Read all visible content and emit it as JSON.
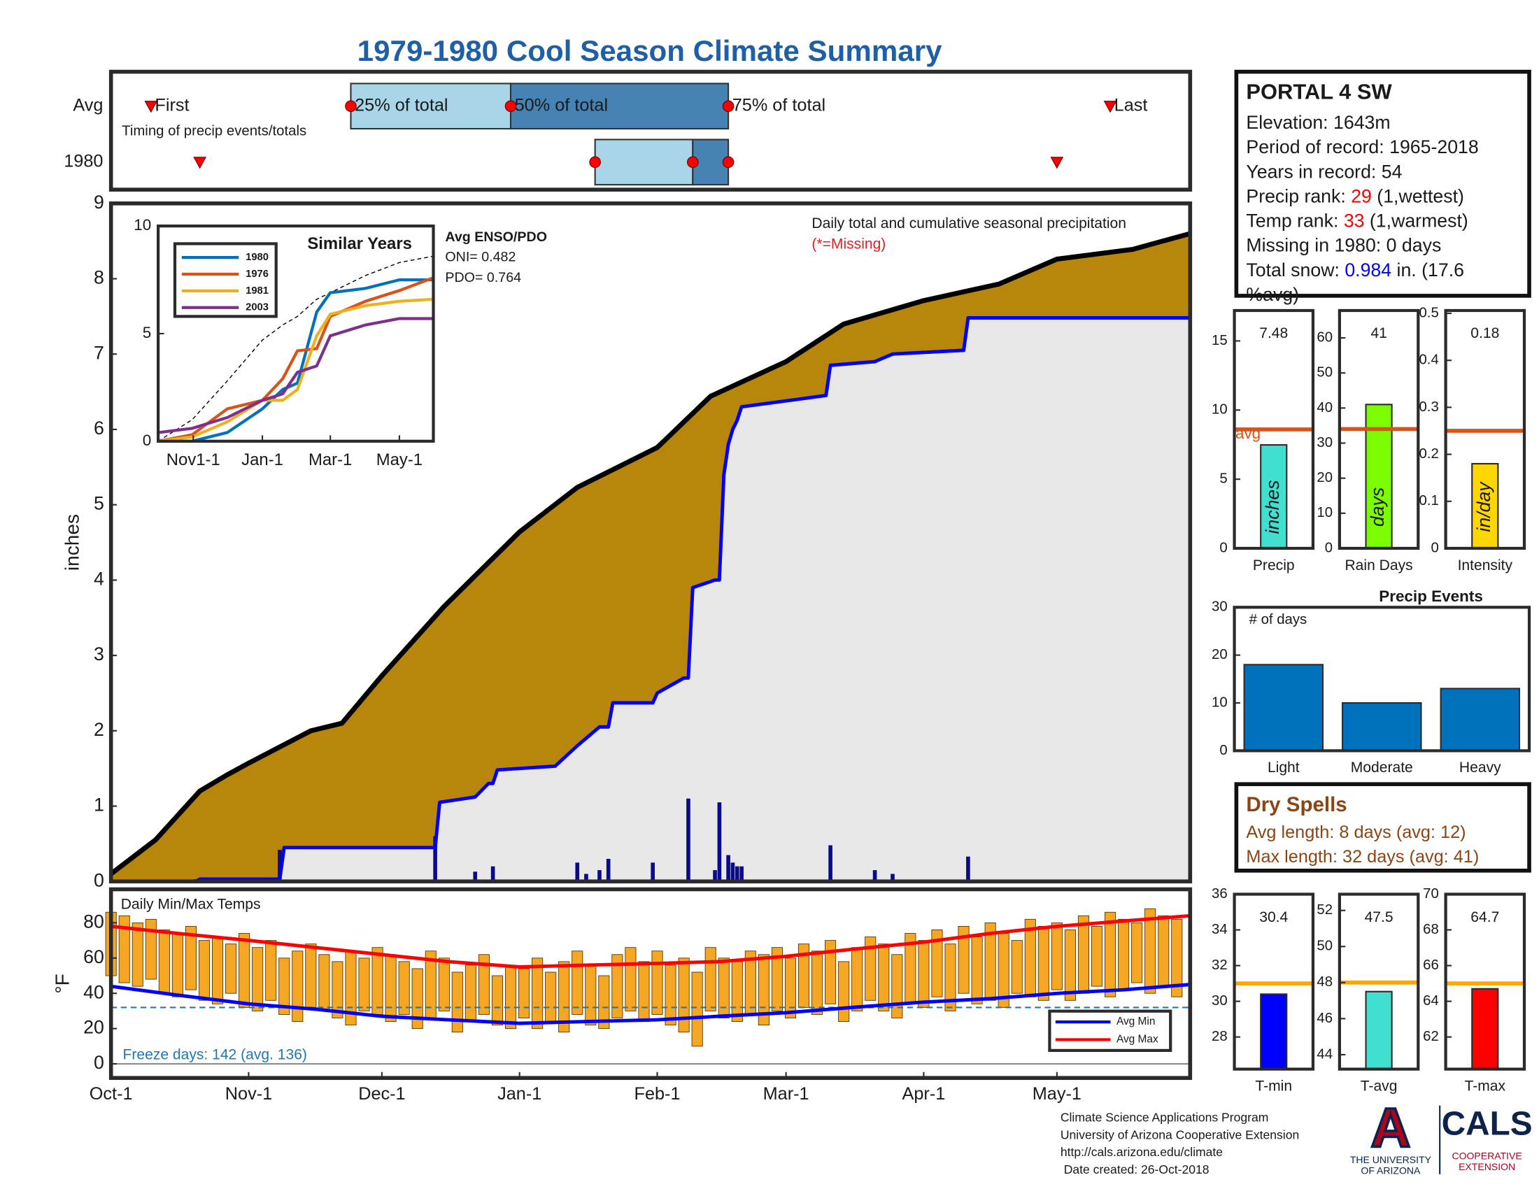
{
  "title": "1979-1980 Cool Season Climate Summary",
  "station": {
    "name": "PORTAL 4 SW",
    "lines": [
      [
        {
          "text": "Elevation: 1643m"
        }
      ],
      [
        {
          "text": "Period of record: 1965-2018"
        }
      ],
      [
        {
          "text": "Years in record: 54"
        }
      ],
      [
        {
          "text": "Precip rank: "
        },
        {
          "text": "29",
          "color": "#ff0000"
        },
        {
          "text": " (1,wettest)"
        }
      ],
      [
        {
          "text": "Temp rank: "
        },
        {
          "text": "33",
          "color": "#ff0000"
        },
        {
          "text": " (1,warmest)"
        }
      ],
      [
        {
          "text": "Missing in 1980: 0 days"
        }
      ],
      [
        {
          "text": "Total snow: "
        },
        {
          "text": "0.984",
          "color": "#0000ff"
        },
        {
          "text": " in. (17.6"
        }
      ],
      [
        {
          "text": "%avg)"
        }
      ]
    ]
  },
  "dry_spells": {
    "title": "Dry Spells",
    "lines": [
      "Avg length: 8 days (avg: 12)",
      "Max length: 32 days (avg: 41)"
    ],
    "color": "#8b4513"
  },
  "footer": [
    "Climate Science Applications Program",
    "University of Arizona Cooperative Extension",
    "http://cals.arizona.edu/climate",
    " Date created: 26-Oct-2018"
  ],
  "logo": {
    "letter": "A",
    "university": [
      "THE UNIVERSITY",
      "OF ARIZONA"
    ],
    "cals": "CALS",
    "extension": [
      "COOPERATIVE",
      "EXTENSION"
    ]
  },
  "chart_data": [
    {
      "type": "timing",
      "annotation": "Timing of precip events/totals",
      "xlim": [
        0,
        243
      ],
      "marker_labels": [
        "First",
        "25% of total",
        "50% of total",
        "75% of total",
        "Last"
      ],
      "box_colors": [
        "#a8d5e8",
        "#4682b4"
      ],
      "marker_color": "#ff0000",
      "series": [
        {
          "name": "Avg",
          "values": [
            9,
            54,
            90,
            139,
            225
          ]
        },
        {
          "name": "1980",
          "values": [
            20,
            109,
            131,
            139,
            213
          ]
        }
      ]
    },
    {
      "type": "area",
      "ylabel": "inches",
      "annotation": "Daily total and cumulative seasonal precipitation",
      "missing_note": "(*=Missing)",
      "xlim": [
        0,
        243
      ],
      "ylim": [
        0,
        9
      ],
      "yticks": [
        0,
        1,
        2,
        3,
        4,
        5,
        6,
        7,
        8,
        9
      ],
      "average_cumulative": {
        "color": "#000000",
        "fill": "#b8860b",
        "x": [
          0,
          10,
          20,
          26,
          31,
          45,
          52,
          61,
          75,
          92,
          105,
          123,
          135,
          152,
          165,
          183,
          200,
          213,
          230,
          243
        ],
        "values": [
          0.1,
          0.55,
          1.2,
          1.41,
          1.57,
          2.0,
          2.1,
          2.73,
          3.65,
          4.64,
          5.23,
          5.76,
          6.44,
          6.9,
          7.4,
          7.71,
          7.93,
          8.26,
          8.39,
          8.6
        ]
      },
      "cumulative": {
        "color": "#0000ff",
        "fill": "#e8e8e8",
        "x": [
          0,
          19,
          20,
          38,
          39,
          73,
          74,
          82,
          85,
          86,
          87,
          100,
          105,
          110,
          112,
          113,
          122,
          123,
          129,
          130,
          131,
          136,
          137,
          138,
          139,
          140,
          141,
          142,
          161,
          162,
          172,
          176,
          192,
          193,
          243
        ],
        "values": [
          0,
          0,
          0.03,
          0.03,
          0.45,
          0.45,
          1.05,
          1.12,
          1.3,
          1.3,
          1.48,
          1.53,
          1.8,
          2.05,
          2.05,
          2.37,
          2.37,
          2.5,
          2.7,
          2.7,
          3.9,
          4.0,
          4.0,
          5.4,
          5.8,
          6.0,
          6.12,
          6.3,
          6.45,
          6.85,
          6.9,
          7.0,
          7.05,
          7.48,
          7.48
        ]
      },
      "daily": {
        "color": "#0a0a8c",
        "x": [
          19,
          38,
          73,
          82,
          86,
          105,
          107,
          110,
          112,
          122,
          130,
          136,
          137,
          139,
          140,
          141,
          142,
          162,
          172,
          176,
          193
        ],
        "values": [
          0.03,
          0.42,
          0.6,
          0.13,
          0.2,
          0.25,
          0.1,
          0.15,
          0.3,
          0.25,
          1.1,
          0.15,
          1.05,
          0.35,
          0.25,
          0.2,
          0.2,
          0.48,
          0.15,
          0.1,
          0.33
        ]
      }
    },
    {
      "type": "line",
      "title": "Similar Years",
      "xlim": [
        0,
        243
      ],
      "ylim": [
        0,
        10
      ],
      "yticks": [
        0,
        5,
        10
      ],
      "xticks": [
        {
          "value": 31,
          "label": "Nov1-1"
        },
        {
          "value": 92,
          "label": "Jan-1"
        },
        {
          "value": 152,
          "label": "Mar-1"
        },
        {
          "value": 213,
          "label": "May-1"
        }
      ],
      "x": [
        0,
        30,
        61,
        92,
        110,
        123,
        140,
        152,
        183,
        213,
        243
      ],
      "series": [
        {
          "name": "1980",
          "color": "#0072bd",
          "values": [
            0,
            0,
            0.4,
            1.5,
            2.4,
            2.7,
            6.0,
            6.9,
            7.1,
            7.5,
            7.5
          ]
        },
        {
          "name": "1976",
          "color": "#d95319",
          "values": [
            0,
            0.3,
            1.5,
            1.9,
            2.9,
            4.2,
            4.3,
            5.8,
            6.5,
            7.0,
            7.6
          ]
        },
        {
          "name": "1981",
          "color": "#edb120",
          "values": [
            0,
            0.2,
            0.9,
            1.9,
            1.9,
            2.4,
            4.9,
            5.9,
            6.3,
            6.5,
            6.6
          ]
        },
        {
          "name": "2003",
          "color": "#7e2f8e",
          "values": [
            0.4,
            0.6,
            1.1,
            1.9,
            2.2,
            3.2,
            3.5,
            4.9,
            5.4,
            5.7,
            5.7
          ]
        }
      ],
      "average": {
        "color": "#000000",
        "values": [
          0,
          1.0,
          2.8,
          4.7,
          5.4,
          5.8,
          6.6,
          6.9,
          7.7,
          8.3,
          8.6
        ]
      },
      "enso": {
        "title": "Avg ENSO/PDO",
        "lines": [
          "ONI= 0.482",
          "PDO= 0.764"
        ]
      }
    },
    {
      "type": "range_bar",
      "title": "Daily Min/Max Temps",
      "ylabel": "°F",
      "xlim": [
        0,
        243
      ],
      "ylim": [
        -8,
        99
      ],
      "yticks": [
        0,
        20,
        40,
        60,
        80
      ],
      "xticks": [
        {
          "value": 0,
          "label": "Oct-1"
        },
        {
          "value": 31,
          "label": "Nov-1"
        },
        {
          "value": 61,
          "label": "Dec-1"
        },
        {
          "value": 92,
          "label": "Jan-1"
        },
        {
          "value": 123,
          "label": "Feb-1"
        },
        {
          "value": 152,
          "label": "Mar-1"
        },
        {
          "value": 183,
          "label": "Apr-1"
        },
        {
          "value": 213,
          "label": "May-1"
        }
      ],
      "bar_color": "#f5a623",
      "x": [
        0,
        3,
        6,
        9,
        12,
        15,
        18,
        21,
        24,
        27,
        30,
        33,
        36,
        39,
        42,
        45,
        48,
        51,
        54,
        57,
        60,
        63,
        66,
        69,
        72,
        75,
        78,
        81,
        84,
        87,
        90,
        93,
        96,
        99,
        102,
        105,
        108,
        111,
        114,
        117,
        120,
        123,
        126,
        129,
        132,
        135,
        138,
        141,
        144,
        147,
        150,
        153,
        156,
        159,
        162,
        165,
        168,
        171,
        174,
        177,
        180,
        183,
        186,
        189,
        192,
        195,
        198,
        201,
        204,
        207,
        210,
        213,
        216,
        219,
        222,
        225,
        228,
        231,
        234,
        237,
        240
      ],
      "max": [
        86,
        84,
        80,
        82,
        76,
        74,
        78,
        70,
        72,
        68,
        74,
        66,
        70,
        60,
        64,
        68,
        62,
        58,
        64,
        60,
        66,
        62,
        58,
        54,
        64,
        60,
        52,
        56,
        62,
        50,
        56,
        54,
        60,
        52,
        58,
        64,
        56,
        50,
        62,
        66,
        58,
        64,
        56,
        60,
        52,
        66,
        60,
        58,
        64,
        62,
        66,
        60,
        68,
        64,
        70,
        58,
        66,
        72,
        68,
        62,
        74,
        70,
        76,
        68,
        78,
        72,
        80,
        74,
        70,
        82,
        78,
        80,
        76,
        84,
        78,
        86,
        82,
        80,
        88,
        84,
        82
      ],
      "min": [
        50,
        46,
        44,
        48,
        40,
        38,
        42,
        36,
        34,
        40,
        32,
        30,
        36,
        28,
        24,
        32,
        30,
        26,
        22,
        30,
        28,
        24,
        28,
        20,
        26,
        30,
        18,
        24,
        28,
        22,
        20,
        26,
        20,
        24,
        18,
        28,
        22,
        20,
        26,
        30,
        24,
        28,
        22,
        18,
        10,
        30,
        26,
        24,
        28,
        22,
        30,
        26,
        32,
        28,
        34,
        24,
        30,
        36,
        30,
        26,
        34,
        32,
        38,
        30,
        40,
        34,
        36,
        32,
        40,
        38,
        36,
        42,
        36,
        40,
        44,
        38,
        42,
        46,
        40,
        44,
        38
      ],
      "series": [
        {
          "name": "Avg Min",
          "color": "#0000ff",
          "x": [
            0,
            15,
            31,
            46,
            61,
            76,
            92,
            107,
            123,
            137,
            152,
            167,
            183,
            198,
            213,
            228,
            243
          ],
          "values": [
            44,
            39,
            34,
            31,
            27,
            25,
            23,
            24,
            25,
            27,
            29,
            32,
            35,
            37,
            40,
            42,
            45
          ]
        },
        {
          "name": "Avg Max",
          "color": "#ff0000",
          "x": [
            0,
            15,
            31,
            46,
            61,
            76,
            92,
            107,
            123,
            137,
            152,
            167,
            183,
            198,
            213,
            228,
            243
          ],
          "values": [
            78,
            74,
            70,
            66,
            62,
            58,
            55,
            56,
            57,
            58,
            61,
            65,
            69,
            74,
            78,
            81,
            84
          ]
        }
      ],
      "freeze_line": 32,
      "freeze_color": "#1f77b4",
      "freeze_note": "Freeze days: 142 (avg. 136)"
    },
    {
      "type": "bar",
      "categories": [
        "Precip"
      ],
      "values": [
        7.48
      ],
      "data_labels": true,
      "unit_label": "inches",
      "color": "#40e0d0",
      "avg": 8.6,
      "avg_label": "avg",
      "avg_color": "#d95319",
      "ylim": [
        0,
        17.2
      ],
      "yticks": [
        0,
        5,
        10,
        15
      ]
    },
    {
      "type": "bar",
      "categories": [
        "Rain Days"
      ],
      "values": [
        41
      ],
      "data_labels": true,
      "unit_label": "days",
      "color": "#7cfc00",
      "avg": 34,
      "avg_color": "#d95319",
      "ylim": [
        0,
        67.8
      ],
      "yticks": [
        0,
        10,
        20,
        30,
        40,
        50,
        60
      ]
    },
    {
      "type": "bar",
      "categories": [
        "Intensity"
      ],
      "values": [
        0.18
      ],
      "data_labels": true,
      "unit_label": "in/day",
      "color": "#ffd700",
      "avg": 0.25,
      "avg_color": "#d95319",
      "ylim": [
        0,
        0.506
      ],
      "yticks": [
        0,
        0.1,
        0.2,
        0.3,
        0.4,
        0.5
      ]
    },
    {
      "type": "bar",
      "title": "Precip Events",
      "annotation": "# of days",
      "categories": [
        "Light",
        "Moderate",
        "Heavy"
      ],
      "values": [
        18,
        10,
        13
      ],
      "color": "#0072bd",
      "ylim": [
        0,
        30
      ],
      "yticks": [
        0,
        10,
        20,
        30
      ]
    },
    {
      "type": "bar",
      "categories": [
        "T-min"
      ],
      "values": [
        30.4
      ],
      "data_labels": true,
      "color": "#0000ff",
      "avg": 31,
      "avg_color": "#ffa500",
      "ylim": [
        26.2,
        36
      ],
      "yticks": [
        28,
        30,
        32,
        34,
        36
      ]
    },
    {
      "type": "bar",
      "categories": [
        "T-avg"
      ],
      "values": [
        47.5
      ],
      "data_labels": true,
      "color": "#40e0d0",
      "avg": 48,
      "avg_color": "#ffa500",
      "ylim": [
        43.2,
        52.9
      ],
      "yticks": [
        44,
        46,
        48,
        50,
        52
      ]
    },
    {
      "type": "bar",
      "categories": [
        "T-max"
      ],
      "values": [
        64.7
      ],
      "data_labels": true,
      "color": "#ff0000",
      "avg": 65,
      "avg_color": "#ffa500",
      "ylim": [
        60.2,
        70
      ],
      "yticks": [
        62,
        64,
        66,
        68,
        70
      ]
    }
  ]
}
